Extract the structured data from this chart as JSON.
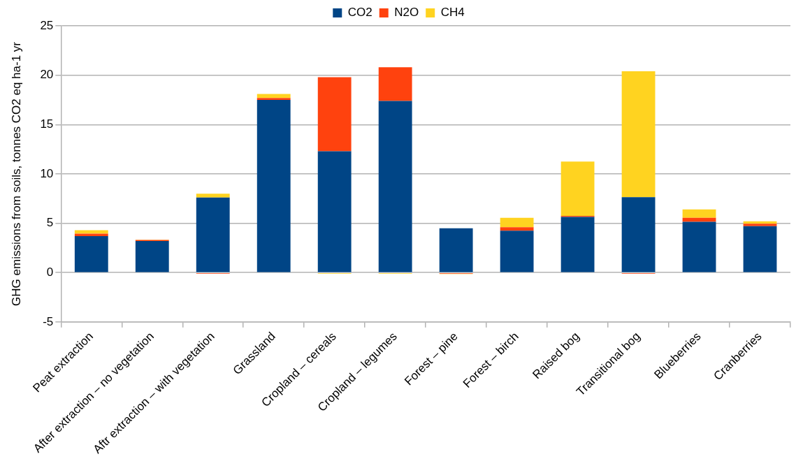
{
  "chart_data": {
    "type": "bar",
    "ylabel": "GHG emissions from soils, tonnes CO2 eq ha-1 yr",
    "categories": [
      "Peat extraction",
      "After extraction – no vegetation",
      "Aftr extraction – with vegetation",
      "Grassland",
      "Cropland – cereals",
      "Cropland – legumes",
      "Forest – pine",
      "Forest – birch",
      "Raised bog",
      "Transitional bog",
      "Blueberries",
      "Cranberries"
    ],
    "series": [
      {
        "name": "CO2",
        "color": "#004586",
        "values": [
          3.7,
          3.2,
          7.6,
          17.5,
          12.3,
          17.4,
          4.5,
          4.25,
          5.65,
          7.65,
          5.15,
          4.7
        ]
      },
      {
        "name": "N2O",
        "color": "#ff420e",
        "values": [
          0.25,
          0.1,
          -0.1,
          0.2,
          7.5,
          3.4,
          -0.1,
          0.35,
          0.1,
          -0.1,
          0.4,
          0.25
        ]
      },
      {
        "name": "CH4",
        "color": "#ffd320",
        "values": [
          0.35,
          0.05,
          0.4,
          0.4,
          -0.1,
          -0.1,
          -0.05,
          0.95,
          5.5,
          12.75,
          0.85,
          0.25
        ]
      }
    ],
    "stacked": true,
    "ylim": [
      -5,
      25
    ],
    "yticks": [
      -5,
      0,
      5,
      10,
      15,
      20,
      25
    ],
    "grid": "y",
    "legend": "top"
  }
}
